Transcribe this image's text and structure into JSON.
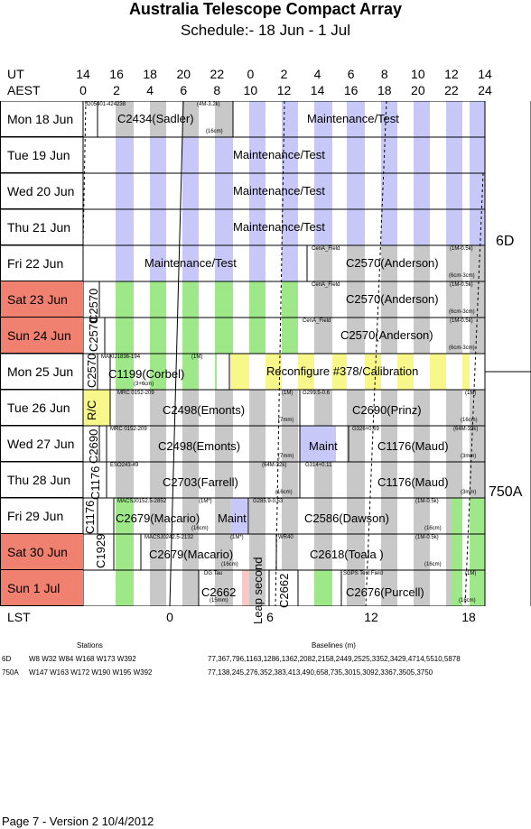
{
  "title": "Australia Telescope Compact Array",
  "subtitle": "Schedule:- 18 Jun - 1  Jul",
  "axes": {
    "ut_label": "UT",
    "aest_label": "AEST",
    "lst_label": "LST",
    "ut_ticks": [
      "14",
      "16",
      "18",
      "20",
      "22",
      "0",
      "2",
      "4",
      "6",
      "8",
      "10",
      "12",
      "14"
    ],
    "aest_ticks": [
      "0",
      "2",
      "4",
      "6",
      "8",
      "10",
      "12",
      "14",
      "16",
      "18",
      "20",
      "22",
      "24"
    ],
    "lst_ticks": [
      "0",
      "6",
      "12",
      "18"
    ]
  },
  "days": [
    {
      "label": "Mon   18 Jun",
      "weekend": false
    },
    {
      "label": "Tue   19 Jun",
      "weekend": false
    },
    {
      "label": "Wed  20 Jun",
      "weekend": false
    },
    {
      "label": "Thu   21 Jun",
      "weekend": false
    },
    {
      "label": "Fri    22 Jun",
      "weekend": false
    },
    {
      "label": "Sat   23 Jun",
      "weekend": true
    },
    {
      "label": "Sun   24 Jun",
      "weekend": true
    },
    {
      "label": "Mon  25 Jun",
      "weekend": false
    },
    {
      "label": "Tue   26 Jun",
      "weekend": false
    },
    {
      "label": "Wed  27 Jun",
      "weekend": false
    },
    {
      "label": "Thu   28 Jun",
      "weekend": false
    },
    {
      "label": "Fri    29 Jun",
      "weekend": false
    },
    {
      "label": "Sat   30 Jun",
      "weekend": true
    },
    {
      "label": "Sun    1  Jul",
      "weekend": true
    }
  ],
  "configs": {
    "top": "6D",
    "bottom": "750A"
  },
  "projects": {
    "r0a": "C2434(Sadler)",
    "r0a_src": "J205401-424238",
    "r0a_band": "(4M-3.2k)",
    "r0a_fr": "(16cm)",
    "r0b": "Maintenance/Test",
    "r1": "Maintenance/Test",
    "r2": "Maintenance/Test",
    "r3": "Maintenance/Test",
    "r4a": "Maintenance/Test",
    "r4b": "C2570(Anderson)",
    "r4b_src": "CenA_Field",
    "r4b_band": "(1M-0.5k)",
    "r4b_fr": "(6cm-3cm)",
    "r5a": "C2570",
    "r5b": "C2570(Anderson)",
    "r5b_src": "CenA_Field",
    "r5b_band": "(1M-0.5k)",
    "r5b_fr": "(6cm-3cm)",
    "r6a": "C2570",
    "r6b": "C2570(Anderson)",
    "r6b_src": "CenA_Field",
    "r6b_band": "(1M-0.5k)",
    "r6b_fr": "(6cm-3cm)",
    "r7a": "C2570",
    "r7b": "C1199(Corbel)",
    "r7b_src": "MAXIJ1836-194",
    "r7b_band": "(1M)",
    "r7b_fr": "(3+6cm)",
    "r7c": "Reconfigure #378/Calibration",
    "r8a": "R/C",
    "r8b": "C2498(Emonts)",
    "r8b_src": "MRC 0152-209",
    "r8b_band": "(1M)",
    "r8b_fr": "(7mm)",
    "r8c": "C2690(Prinz)",
    "r8c_src": "G299.5-0.6",
    "r8c_band": "(1M)",
    "r8c_fr": "(16cm)",
    "r9a": "C2690",
    "r9b": "C2498(Emonts)",
    "r9b_src": "MRC 0152-209",
    "r9b_fr": "(7mm)",
    "r9c": "Maint",
    "r9d": "C1176(Maud)",
    "r9d_src": "G326+0.69",
    "r9d_band": "(64M-32k)",
    "r9d_fr": "(3mm)",
    "r10a": "C1176",
    "r10b": "C2703(Farrell)",
    "r10b_src": "ESO243-49",
    "r10b_band": "(64M-32k)",
    "r10b_fr": "(16cm)",
    "r10c": "C1176(Maud)",
    "r10c_src": "G314+0.11",
    "r10c_fr": "(3mm)",
    "r11a": "C1176",
    "r11b": "C2679(Macario)",
    "r11b_src": "MACSJ0152.5-2852",
    "r11b_band": "(1M*)",
    "r11b_fr": "(16cm)",
    "r11c": "Maint",
    "r11d": "C2586(Dawson)",
    "r11d_src": "G285.9-0.53",
    "r11d_band": "(1M-0.5k)",
    "r11d_fr": "(16cm)",
    "r12a": "C1929",
    "r12b": "C2679(Macario)",
    "r12b_src": "MACSJ0242.5-2132",
    "r12b_band": "(1M*)",
    "r12b_fr": "(16cm)",
    "r12c": "C2618(Toala )",
    "r12c_src": "WR40",
    "r12c_band": "(1M-0.5k)",
    "r12c_fr": "(16cm)",
    "r13a": "C2662",
    "r13a_src": "DG Tau",
    "r13a_fr": "(15mm)",
    "r13b": "Leap second",
    "r13c": "C2662",
    "r13d": "C2676(Purcell)",
    "r13d_src": "SGPS Test Field",
    "r13d_band": "(1M)",
    "r13d_fr": "(16cm)"
  },
  "footer": {
    "stations_hdr": "Stations",
    "baselines_hdr": "Baselines (m)",
    "cfg1": "6D",
    "cfg1_st": "W8 W32 W84 W168 W173 W392",
    "cfg1_bl": "77,367,796,1163,1286,1362,2082,2158,2449,2525,3352,3429,4714,5510,5878",
    "cfg2": "750A",
    "cfg2_st": "W147 W163 W172 W190 W195 W392",
    "cfg2_bl": "77,138,245,276,352,383,413,490,658,735,3015,3092,3367,3505,3750",
    "page": "Page 7 - Version 2  10/4/2012"
  },
  "colors": {
    "night": "#c8c8f8",
    "weekend": "#f08070",
    "gray": "#c8c8c8",
    "green": "#9ee88a",
    "yellow": "#f8f88a"
  }
}
